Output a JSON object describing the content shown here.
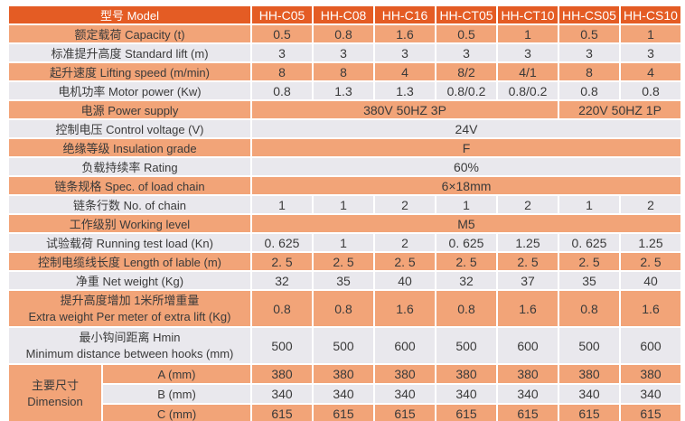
{
  "table": {
    "colors": {
      "header_bg": "#e45c24",
      "salmon_bg": "#f2a478",
      "light_bg": "#e9e8ed",
      "grid": "#ffffff",
      "header_text": "#ffffff",
      "cell_text": "#3a3a3a"
    },
    "header": {
      "label": "型号 Model",
      "models": [
        "HH-C05",
        "HH-C08",
        "HH-C16",
        "HH-CT05",
        "HH-CT10",
        "HH-CS05",
        "HH-CS10"
      ]
    },
    "rows": [
      {
        "label": "额定载荷 Capacity (t)",
        "shade": "salmon",
        "values": [
          "0.5",
          "0.8",
          "1.6",
          "0.5",
          "1",
          "0.5",
          "1"
        ]
      },
      {
        "label": "标准提升高度 Standard lift (m)",
        "shade": "light",
        "values": [
          "3",
          "3",
          "3",
          "3",
          "3",
          "3",
          "3"
        ]
      },
      {
        "label": "起升速度 Lifting speed (m/min)",
        "shade": "salmon",
        "values": [
          "8",
          "8",
          "4",
          "8/2",
          "4/1",
          "8",
          "4"
        ]
      },
      {
        "label": "电机功率 Motor power (Kw)",
        "shade": "light",
        "values": [
          "0.8",
          "1.3",
          "1.3",
          "0.8/0.2",
          "0.8/0.2",
          "0.8",
          "0.8"
        ]
      },
      {
        "label": "电源 Power supply",
        "shade": "salmon",
        "spans": [
          {
            "value": "380V 50HZ 3P",
            "cols": 5
          },
          {
            "value": "220V 50HZ 1P",
            "cols": 2
          }
        ]
      },
      {
        "label": "控制电压 Control voltage (V)",
        "shade": "light",
        "spans": [
          {
            "value": "24V",
            "cols": 7
          }
        ]
      },
      {
        "label": "绝缘等级 Insulation grade",
        "shade": "salmon",
        "spans": [
          {
            "value": "F",
            "cols": 7
          }
        ]
      },
      {
        "label": "负载持续率 Rating",
        "shade": "light",
        "spans": [
          {
            "value": "60%",
            "cols": 7
          }
        ]
      },
      {
        "label": "链条规格 Spec. of load chain",
        "shade": "salmon",
        "spans": [
          {
            "value": "6×18mm",
            "cols": 7
          }
        ]
      },
      {
        "label": "链条行数 No. of chain",
        "shade": "light",
        "values": [
          "1",
          "1",
          "2",
          "1",
          "2",
          "1",
          "2"
        ]
      },
      {
        "label": "工作级别 Working level",
        "shade": "salmon",
        "spans": [
          {
            "value": "M5",
            "cols": 7
          }
        ]
      },
      {
        "label": "试验载荷 Running test load (Kn)",
        "shade": "light",
        "values": [
          "0. 625",
          "1",
          "2",
          "0. 625",
          "1.25",
          "0. 625",
          "1.25"
        ]
      },
      {
        "label": "控制电缆线长度 Length of lable (m)",
        "shade": "salmon",
        "values": [
          "2. 5",
          "2. 5",
          "2. 5",
          "2. 5",
          "2. 5",
          "2. 5",
          "2. 5"
        ]
      },
      {
        "label": "净重 Net weight (Kg)",
        "shade": "light",
        "values": [
          "32",
          "35",
          "40",
          "32",
          "37",
          "35",
          "40"
        ]
      },
      {
        "label": "提升高度增加 1米所增重量",
        "label2": "Extra weight Per meter of extra lift (Kg)",
        "shade": "salmon",
        "tall": true,
        "values": [
          "0.8",
          "0.8",
          "1.6",
          "0.8",
          "1.6",
          "0.8",
          "1.6"
        ]
      },
      {
        "label": "最小钩间距离 Hmin",
        "label2": "Minimum distance between hooks (mm)",
        "shade": "light",
        "tall": true,
        "values": [
          "500",
          "500",
          "600",
          "500",
          "600",
          "500",
          "600"
        ]
      }
    ],
    "dimension_group": {
      "label_zh": "主要尺寸",
      "label_en": "Dimension",
      "rows": [
        {
          "label": "A (mm)",
          "shade": "salmon",
          "values": [
            "380",
            "380",
            "380",
            "380",
            "380",
            "380",
            "380"
          ]
        },
        {
          "label": "B (mm)",
          "shade": "light",
          "values": [
            "340",
            "340",
            "340",
            "340",
            "340",
            "340",
            "340"
          ]
        },
        {
          "label": "C (mm)",
          "shade": "salmon",
          "values": [
            "615",
            "615",
            "615",
            "615",
            "615",
            "615",
            "615"
          ]
        }
      ]
    }
  }
}
